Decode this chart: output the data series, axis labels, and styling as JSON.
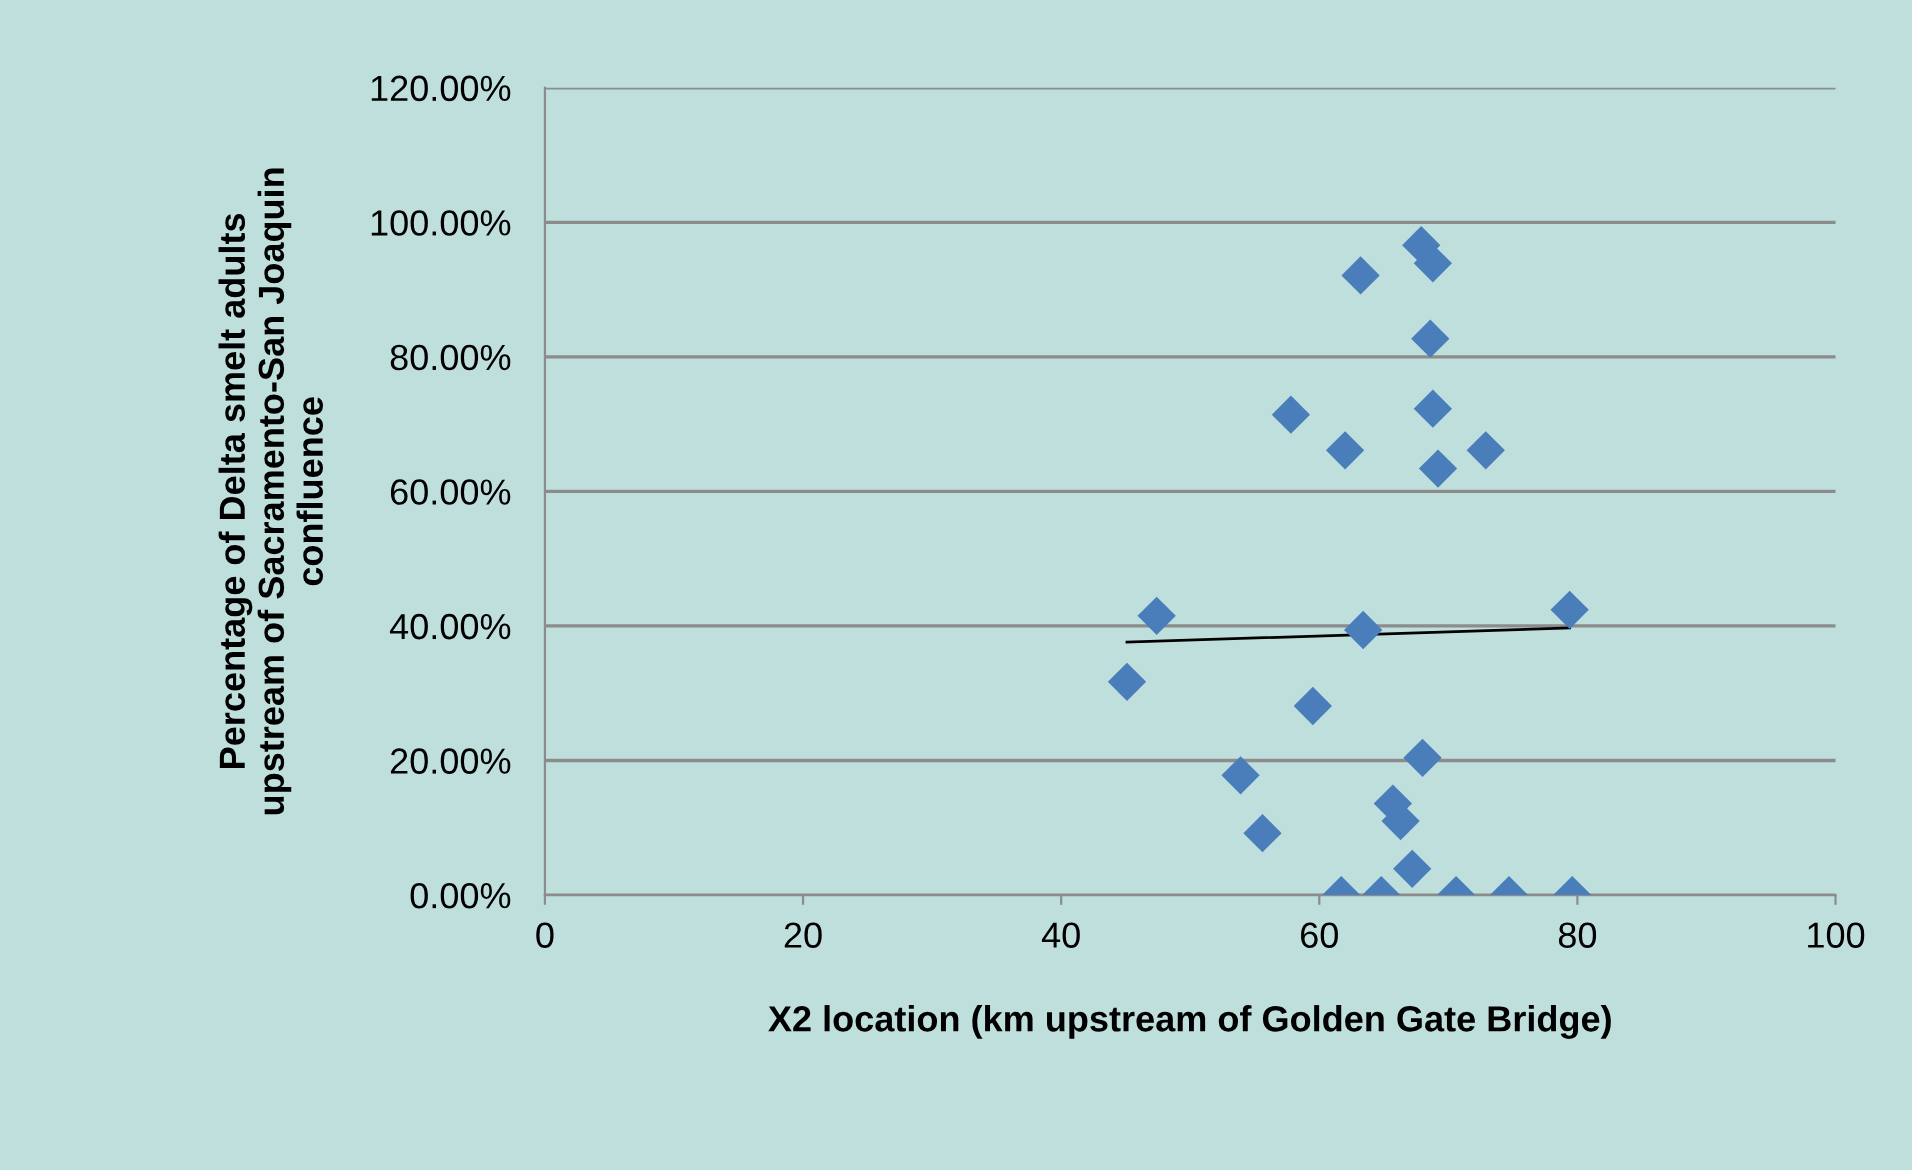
{
  "chart_data": {
    "type": "scatter",
    "xlabel": "X2 location (km upstream of Golden Gate Bridge)",
    "ylabel": "Percentage of Delta smelt adults\nupstream of Sacramento-San Joaquin\nconfluence",
    "xlim": [
      0,
      100
    ],
    "xticks": [
      0,
      20,
      40,
      60,
      80,
      100
    ],
    "ylim": [
      0,
      120
    ],
    "yticks": [
      {
        "value": 0,
        "label": "0.00%"
      },
      {
        "value": 20,
        "label": "20.00%"
      },
      {
        "value": 40,
        "label": "40.00%"
      },
      {
        "value": 60,
        "label": "60.00%"
      },
      {
        "value": 80,
        "label": "80.00%"
      },
      {
        "value": 100,
        "label": "100.00%"
      },
      {
        "value": 120,
        "label": "120.00%"
      }
    ],
    "grid": "y",
    "legend": false,
    "series": [
      {
        "marker": "diamond",
        "color": "#4a7ebb",
        "x": [
          67.9,
          68.8,
          63.2,
          68.6,
          57.8,
          68.8,
          62.0,
          69.2,
          72.9,
          47.4,
          63.4,
          79.4,
          45.1,
          59.5,
          68.0,
          53.9,
          55.6,
          65.7,
          66.3,
          67.2,
          61.7,
          64.8,
          70.6,
          74.7,
          79.6
        ],
        "values": [
          96.6,
          93.9,
          92.1,
          82.7,
          71.4,
          72.3,
          66.1,
          63.4,
          66.1,
          41.5,
          39.4,
          42.4,
          31.7,
          28.1,
          20.4,
          17.8,
          9.2,
          13.6,
          11.0,
          3.9,
          0,
          0,
          0,
          0,
          0
        ]
      },
      {
        "type": "line",
        "color": "#000000",
        "line_style": "solid",
        "marker": "none",
        "x": [
          45.1,
          79.4
        ],
        "values": [
          37.6,
          39.7
        ]
      }
    ]
  }
}
